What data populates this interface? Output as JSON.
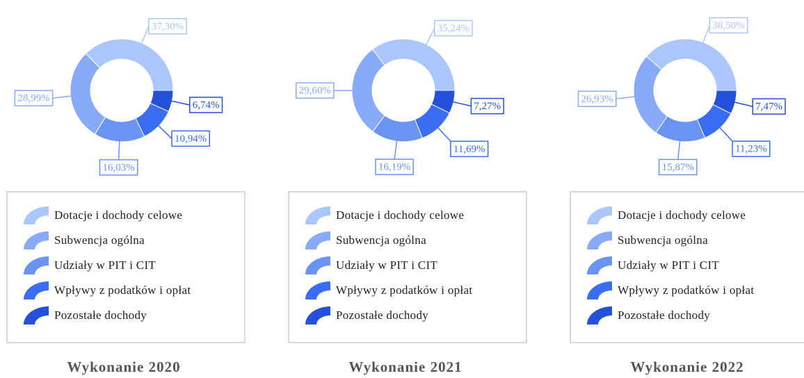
{
  "chart_data": [
    {
      "type": "pie",
      "title": "Wykonanie 2020",
      "categories": [
        "Dotacje i dochody celowe",
        "Subwencja ogólna",
        "Udziały w PIT i CIT",
        "Wpływy z podatków i opłat",
        "Pozostałe dochody"
      ],
      "values": [
        37.3,
        28.99,
        16.03,
        10.94,
        6.74
      ],
      "value_labels": [
        "37,30%",
        "28,99%",
        "16,03%",
        "10,94%",
        "6,74%"
      ],
      "colors": [
        "#abc6fd",
        "#88aaf9",
        "#6b93f5",
        "#3a6cf4",
        "#2550d9"
      ]
    },
    {
      "type": "pie",
      "title": "Wykonanie 2021",
      "categories": [
        "Dotacje i dochody celowe",
        "Subwencja ogólna",
        "Udziały w PIT i CIT",
        "Wpływy z podatków i opłat",
        "Pozostałe dochody"
      ],
      "values": [
        35.24,
        29.6,
        16.19,
        11.69,
        7.27
      ],
      "value_labels": [
        "35,24%",
        "29,60%",
        "16,19%",
        "11,69%",
        "7,27%"
      ],
      "colors": [
        "#abc6fd",
        "#88aaf9",
        "#6b93f5",
        "#3a6cf4",
        "#2550d9"
      ]
    },
    {
      "type": "pie",
      "title": "Wykonanie 2022",
      "categories": [
        "Dotacje i dochody celowe",
        "Subwencja ogólna",
        "Udziały w PIT i CIT",
        "Wpływy z podatków i opłat",
        "Pozostałe dochody"
      ],
      "values": [
        38.5,
        26.93,
        15.87,
        11.23,
        7.47
      ],
      "value_labels": [
        "38,50%",
        "26,93%",
        "15,87%",
        "11,23%",
        "7,47%"
      ],
      "colors": [
        "#abc6fd",
        "#88aaf9",
        "#6b93f5",
        "#3a6cf4",
        "#2550d9"
      ]
    }
  ]
}
